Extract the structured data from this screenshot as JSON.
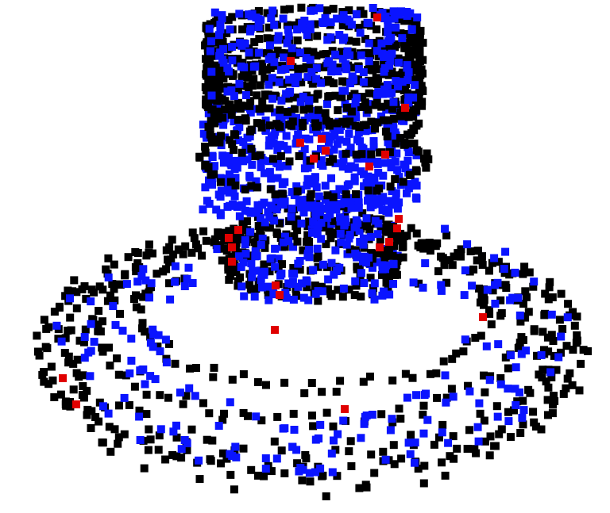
{
  "scene": {
    "description_kind": "3d-point-cloud-render",
    "background_color": "#ffffff",
    "point_colors": {
      "normal": "#0a14ff",
      "highlighted": "#e00000"
    },
    "marker_shape": "square"
  }
}
